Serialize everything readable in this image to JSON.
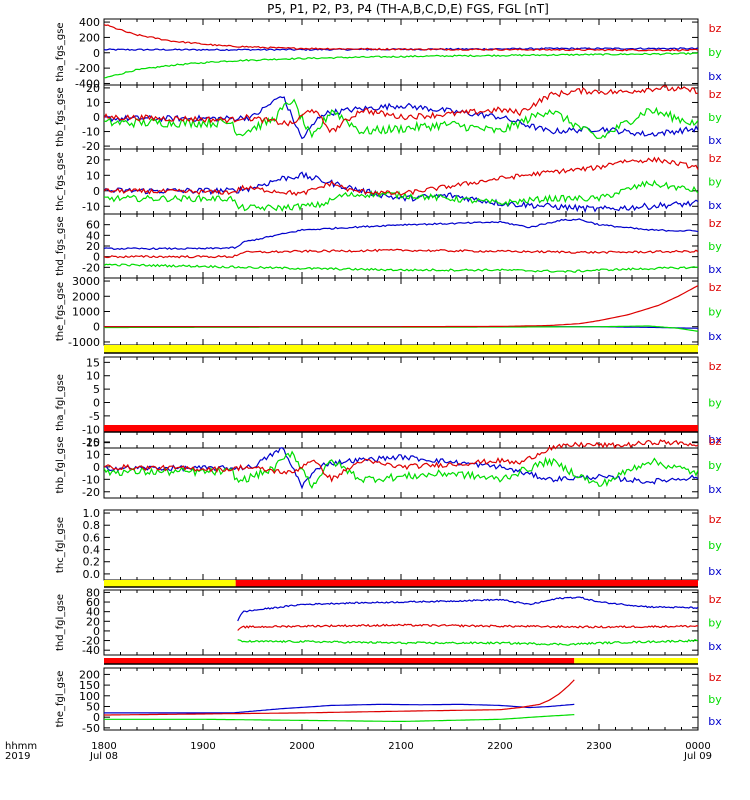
{
  "title": "P5, P1, P2, P3, P4 (TH-A,B,C,D,E) FGS, FGL [nT]",
  "colors": {
    "bz": "#dd0000",
    "by": "#00dd00",
    "bx": "#0000cc",
    "yellow": "#ffff00",
    "red": "#ff0000",
    "black": "#000000"
  },
  "xaxis": {
    "row1_label": "hhmm",
    "row2_label": "2019",
    "tick_values": [
      "1800",
      "1900",
      "2000",
      "2100",
      "2200",
      "2300",
      "0000"
    ],
    "date_labels": [
      "Jul 08",
      "Jul 09"
    ]
  },
  "chart_data": [
    {
      "type": "line",
      "ylabel": "tha_fgs_gse",
      "ylim": [
        -420,
        440
      ],
      "tick_labels": [
        "400",
        "200",
        "0",
        "-200",
        "-400"
      ],
      "legend": [
        "bz",
        "by",
        "bx"
      ],
      "series": [
        {
          "name": "bz",
          "color": "bz",
          "x": [
            18.0,
            18.3,
            18.7,
            19.2,
            19.8,
            20.5,
            21.2,
            22.0,
            22.4,
            22.8,
            23.2,
            23.6,
            24.0
          ],
          "values": [
            370,
            240,
            150,
            90,
            60,
            50,
            45,
            42,
            40,
            38,
            36,
            35,
            34
          ],
          "noise": 10
        },
        {
          "name": "by",
          "color": "by",
          "x": [
            18.0,
            18.3,
            18.7,
            19.2,
            19.8,
            20.5,
            21.2,
            22.0,
            22.4,
            22.8,
            23.2,
            23.6,
            24.0
          ],
          "values": [
            -330,
            -230,
            -160,
            -110,
            -80,
            -60,
            -45,
            -35,
            -30,
            -25,
            -20,
            -15,
            -10
          ],
          "noise": 10
        },
        {
          "name": "bx",
          "color": "bx",
          "x": [
            18.0,
            19.0,
            20.0,
            21.0,
            22.0,
            22.5,
            23.0,
            23.5,
            24.0
          ],
          "values": [
            40,
            40,
            40,
            45,
            50,
            55,
            55,
            55,
            55
          ],
          "noise": 10
        }
      ]
    },
    {
      "type": "line",
      "ylabel": "thb_fgs_gse",
      "ylim": [
        -22,
        22
      ],
      "tick_labels": [
        "20",
        "10",
        "0",
        "-10",
        "-20"
      ],
      "legend": [
        "bz",
        "by",
        "bx"
      ],
      "series": [
        {
          "name": "bz",
          "color": "bz",
          "x": [
            18.0,
            19.3,
            19.4,
            19.9,
            20.1,
            20.3,
            20.6,
            21.0,
            21.5,
            22.0,
            22.2,
            22.5,
            22.8,
            23.2,
            23.6,
            24.0
          ],
          "values": [
            0,
            -2,
            0,
            -5,
            6,
            -10,
            5,
            0,
            2,
            5,
            3,
            15,
            18,
            17,
            20,
            18
          ],
          "noise": 2
        },
        {
          "name": "by",
          "color": "by",
          "x": [
            18.0,
            19.3,
            19.35,
            19.7,
            19.9,
            20.1,
            20.3,
            20.6,
            21.0,
            21.5,
            22.0,
            22.5,
            23.0,
            23.5,
            24.0
          ],
          "values": [
            -4,
            -4,
            -12,
            -2,
            12,
            -15,
            5,
            -10,
            -8,
            -5,
            -10,
            5,
            -15,
            5,
            -5
          ],
          "noise": 3
        },
        {
          "name": "bx",
          "color": "bx",
          "x": [
            18.0,
            19.3,
            19.5,
            19.8,
            20.0,
            20.2,
            20.5,
            21.0,
            21.5,
            22.0,
            22.5,
            23.0,
            23.5,
            24.0
          ],
          "values": [
            -1,
            -1,
            0,
            15,
            -15,
            2,
            5,
            8,
            4,
            0,
            -10,
            -8,
            -12,
            -8
          ],
          "noise": 2
        }
      ]
    },
    {
      "type": "line",
      "ylabel": "thc_fgs_gse",
      "ylim": [
        -15,
        27
      ],
      "tick_labels": [
        "20",
        "10",
        "0",
        "-10"
      ],
      "legend": [
        "bz",
        "by",
        "bx"
      ],
      "series": [
        {
          "name": "bz",
          "color": "bz",
          "x": [
            18.0,
            19.3,
            19.4,
            20.0,
            20.3,
            20.5,
            21.0,
            21.5,
            22.0,
            22.5,
            23.0,
            23.2,
            23.6,
            24.0
          ],
          "values": [
            0,
            -1,
            2,
            -2,
            5,
            0,
            -2,
            3,
            8,
            12,
            15,
            19,
            20,
            15
          ],
          "noise": 1.5
        },
        {
          "name": "by",
          "color": "by",
          "x": [
            18.0,
            19.3,
            19.35,
            19.8,
            20.2,
            20.4,
            20.8,
            21.5,
            22.0,
            22.5,
            23.0,
            23.5,
            24.0
          ],
          "values": [
            -5,
            -5,
            -11,
            -11,
            -9,
            -3,
            -2,
            -5,
            -8,
            -5,
            -5,
            5,
            0
          ],
          "noise": 2
        },
        {
          "name": "bx",
          "color": "bx",
          "x": [
            18.0,
            19.3,
            19.5,
            19.8,
            20.0,
            20.3,
            20.6,
            21.0,
            21.5,
            22.0,
            22.5,
            23.0,
            23.5,
            24.0
          ],
          "values": [
            0,
            0,
            2,
            8,
            10,
            5,
            0,
            -5,
            -3,
            -8,
            -10,
            -12,
            -10,
            -8
          ],
          "noise": 2
        }
      ]
    },
    {
      "type": "line",
      "ylabel": "thd_fgs_gse",
      "ylim": [
        -40,
        80
      ],
      "tick_labels": [
        "60",
        "40",
        "20",
        "0",
        "-20"
      ],
      "legend": [
        "bz",
        "by",
        "bx"
      ],
      "series": [
        {
          "name": "bz",
          "color": "bz",
          "x": [
            18.0,
            19.3,
            19.4,
            20.0,
            21.0,
            22.0,
            23.0,
            24.0
          ],
          "values": [
            0,
            0,
            8,
            10,
            12,
            10,
            8,
            10
          ],
          "noise": 2
        },
        {
          "name": "by",
          "color": "by",
          "x": [
            18.0,
            19.0,
            19.4,
            20.0,
            21.0,
            22.0,
            22.7,
            23.0,
            24.0
          ],
          "values": [
            -15,
            -18,
            -20,
            -22,
            -25,
            -25,
            -28,
            -25,
            -20
          ],
          "noise": 2
        },
        {
          "name": "bx",
          "color": "bx",
          "x": [
            18.0,
            19.0,
            19.35,
            19.4,
            20.0,
            20.5,
            21.0,
            21.5,
            22.0,
            22.3,
            22.6,
            22.8,
            23.0,
            23.5,
            24.0
          ],
          "values": [
            15,
            15,
            17,
            27,
            50,
            55,
            60,
            62,
            65,
            55,
            68,
            70,
            60,
            50,
            48
          ],
          "noise": 1.5
        }
      ]
    },
    {
      "type": "line",
      "ylabel": "the_fgs_gse",
      "ylim": [
        -1200,
        3200
      ],
      "tick_labels": [
        "3000",
        "2000",
        "1000",
        "0",
        "-1000"
      ],
      "legend": [
        "bz",
        "by",
        "bx"
      ],
      "series": [
        {
          "name": "bz",
          "color": "bz",
          "x": [
            18.0,
            19.0,
            20.0,
            21.0,
            22.0,
            22.5,
            22.8,
            23.0,
            23.3,
            23.6,
            23.8,
            24.0
          ],
          "values": [
            0,
            0,
            0,
            5,
            20,
            80,
            200,
            400,
            800,
            1400,
            2000,
            2700
          ],
          "noise": 0
        },
        {
          "name": "by",
          "color": "by",
          "x": [
            18.0,
            20.0,
            22.0,
            23.0,
            23.5,
            23.8,
            24.0
          ],
          "values": [
            -50,
            -30,
            -20,
            0,
            50,
            -100,
            -300
          ],
          "noise": 0
        },
        {
          "name": "bx",
          "color": "bx",
          "x": [
            18.0,
            20.0,
            22.0,
            23.0,
            23.6,
            23.8,
            24.0
          ],
          "values": [
            0,
            0,
            0,
            0,
            -50,
            -80,
            -100
          ],
          "noise": 0
        }
      ]
    },
    {
      "type": "line",
      "ylabel": "tha_fgl_gse",
      "ylim": [
        -17,
        17
      ],
      "tick_labels": [
        "15",
        "10",
        "5",
        "0",
        "-5",
        "-10",
        "-15"
      ],
      "legend": [
        "bz",
        "by",
        "bx"
      ],
      "series": []
    },
    {
      "type": "line",
      "ylabel": "thb_fgl_gse",
      "ylim": [
        -25,
        28
      ],
      "tick_labels": [
        "20",
        "10",
        "0",
        "-10",
        "-20"
      ],
      "legend": [
        "bz",
        "by",
        "bx"
      ],
      "series": [
        {
          "name": "bz",
          "color": "bz",
          "x": [
            18.0,
            19.3,
            19.4,
            19.9,
            20.1,
            20.3,
            20.6,
            21.0,
            21.5,
            22.0,
            22.2,
            22.5,
            22.8,
            23.2,
            23.6,
            24.0
          ],
          "values": [
            0,
            -2,
            0,
            -5,
            6,
            -10,
            5,
            0,
            2,
            5,
            3,
            15,
            18,
            17,
            20,
            18
          ],
          "noise": 2
        },
        {
          "name": "by",
          "color": "by",
          "x": [
            18.0,
            19.3,
            19.35,
            19.7,
            19.9,
            20.1,
            20.3,
            20.6,
            21.0,
            21.5,
            22.0,
            22.5,
            23.0,
            23.5,
            24.0
          ],
          "values": [
            -4,
            -4,
            -12,
            -2,
            12,
            -15,
            5,
            -10,
            -8,
            -5,
            -10,
            5,
            -15,
            5,
            -5
          ],
          "noise": 3
        },
        {
          "name": "bx",
          "color": "bx",
          "x": [
            18.0,
            19.3,
            19.5,
            19.8,
            20.0,
            20.2,
            20.5,
            21.0,
            21.5,
            22.0,
            22.5,
            23.0,
            23.5,
            24.0
          ],
          "values": [
            -1,
            -1,
            0,
            15,
            -15,
            2,
            5,
            8,
            4,
            0,
            -10,
            -8,
            -12,
            -8
          ],
          "noise": 2
        }
      ]
    },
    {
      "type": "line",
      "ylabel": "thc_fgl_gse",
      "ylim": [
        -0.1,
        1.05
      ],
      "tick_labels": [
        "1.0",
        "0.8",
        "0.6",
        "0.4",
        "0.2",
        "0.0"
      ],
      "legend": [
        "bz",
        "by",
        "bx"
      ],
      "series": []
    },
    {
      "type": "line",
      "ylabel": "thd_fgl_gse",
      "ylim": [
        -50,
        85
      ],
      "tick_labels": [
        "80",
        "60",
        "40",
        "20",
        "0",
        "-20",
        "-40"
      ],
      "legend": [
        "bz",
        "by",
        "bx"
      ],
      "series": [
        {
          "name": "bz",
          "color": "bz",
          "x": [
            19.35,
            19.4,
            20.0,
            21.0,
            22.0,
            23.0,
            24.0
          ],
          "values": [
            0,
            8,
            10,
            12,
            10,
            8,
            10
          ],
          "noise": 2
        },
        {
          "name": "by",
          "color": "by",
          "x": [
            19.35,
            19.4,
            20.0,
            21.0,
            22.0,
            22.7,
            23.0,
            24.0
          ],
          "values": [
            -20,
            -22,
            -22,
            -25,
            -25,
            -28,
            -25,
            -20
          ],
          "noise": 2
        },
        {
          "name": "bx",
          "color": "bx",
          "x": [
            19.35,
            19.4,
            20.0,
            20.5,
            21.0,
            21.5,
            22.0,
            22.3,
            22.6,
            22.8,
            23.0,
            23.5,
            24.0
          ],
          "values": [
            20,
            40,
            55,
            58,
            60,
            62,
            65,
            55,
            68,
            70,
            60,
            50,
            48
          ],
          "noise": 1.5
        }
      ]
    },
    {
      "type": "line",
      "ylabel": "the_fgl_gse",
      "ylim": [
        -60,
        230
      ],
      "tick_labels": [
        "200",
        "150",
        "100",
        "50",
        "0",
        "-50"
      ],
      "legend": [
        "bz",
        "by",
        "bx"
      ],
      "series": [
        {
          "name": "bz",
          "color": "bz",
          "x": [
            18.0,
            19.0,
            20.0,
            21.0,
            22.0,
            22.2,
            22.4,
            22.5,
            22.6,
            22.7,
            22.75
          ],
          "values": [
            10,
            15,
            20,
            28,
            35,
            45,
            60,
            80,
            110,
            150,
            175
          ],
          "noise": 0
        },
        {
          "name": "by",
          "color": "by",
          "x": [
            18.0,
            19.0,
            20.0,
            21.0,
            22.0,
            22.5,
            22.75
          ],
          "values": [
            -10,
            -10,
            -15,
            -20,
            -10,
            5,
            12
          ],
          "noise": 0
        },
        {
          "name": "bx",
          "color": "bx",
          "x": [
            18.0,
            19.3,
            19.8,
            20.3,
            20.8,
            21.2,
            21.6,
            22.0,
            22.3,
            22.5,
            22.75
          ],
          "values": [
            20,
            20,
            40,
            55,
            60,
            58,
            60,
            55,
            45,
            50,
            60
          ],
          "noise": 0
        }
      ]
    }
  ],
  "bars": [
    {
      "segments": [
        {
          "from": 18.0,
          "to": 24.0,
          "color": "yellow"
        }
      ]
    },
    {
      "segments": [
        {
          "from": 18.0,
          "to": 24.0,
          "color": "red"
        }
      ]
    },
    {
      "segments": [
        {
          "from": 18.0,
          "to": 19.33,
          "color": "yellow"
        },
        {
          "from": 19.33,
          "to": 24.0,
          "color": "red"
        }
      ]
    },
    {
      "segments": [
        {
          "from": 18.0,
          "to": 22.75,
          "color": "red"
        },
        {
          "from": 22.75,
          "to": 24.0,
          "color": "yellow"
        }
      ]
    }
  ]
}
